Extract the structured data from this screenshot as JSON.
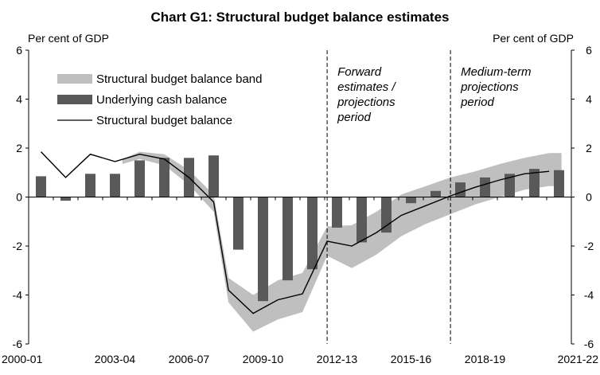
{
  "chart_data": {
    "type": "bar",
    "title": "Chart G1: Structural budget balance estimates",
    "ylabel_left": "Per cent of GDP",
    "ylabel_right": "Per cent of GDP",
    "ylim": [
      -6,
      6
    ],
    "yticks": [
      "6",
      "4",
      "2",
      "0",
      "-2",
      "-4",
      "-6"
    ],
    "categories": [
      "2000-01",
      "2001-02",
      "2002-03",
      "2003-04",
      "2004-05",
      "2005-06",
      "2006-07",
      "2007-08",
      "2008-09",
      "2009-10",
      "2010-11",
      "2011-12",
      "2012-13",
      "2013-14",
      "2014-15",
      "2015-16",
      "2016-17",
      "2017-18",
      "2018-19",
      "2019-20",
      "2020-21",
      "2021-22"
    ],
    "xtick_labels": [
      "2000-01",
      "2003-04",
      "2006-07",
      "2009-10",
      "2012-13",
      "2015-16",
      "2018-19",
      "2021-22"
    ],
    "legend": {
      "band": "Structural budget balance band",
      "bars": "Underlying cash balance",
      "line": "Structural budget balance"
    },
    "series": [
      {
        "name": "Underlying cash balance",
        "kind": "bar",
        "color": "#595959",
        "values": [
          0.85,
          -0.15,
          0.95,
          0.95,
          1.5,
          1.6,
          1.6,
          1.7,
          -2.15,
          -4.25,
          -3.4,
          -2.95,
          -1.25,
          -1.85,
          -1.45,
          -0.25,
          0.25,
          0.6,
          0.8,
          0.95,
          1.15,
          1.1
        ]
      },
      {
        "name": "Structural budget balance",
        "kind": "line",
        "color": "#000000",
        "x": [
          0,
          1,
          2,
          3,
          4,
          5,
          6,
          7,
          7.6,
          8.6,
          9.6,
          10.6,
          11.6,
          12.6,
          13.6,
          14.6,
          15.6,
          16.6,
          17.6,
          18.6,
          19.6,
          20.6
        ],
        "values": [
          1.85,
          0.8,
          1.75,
          1.45,
          1.75,
          1.55,
          0.8,
          -0.2,
          -3.8,
          -4.75,
          -4.2,
          -3.95,
          -1.8,
          -2.0,
          -1.45,
          -0.75,
          -0.35,
          0.05,
          0.4,
          0.7,
          0.95,
          1.05
        ]
      },
      {
        "name": "Structural budget balance band",
        "kind": "band",
        "color": "#bfbfbf",
        "x": [
          3.3,
          4,
          5,
          6,
          7,
          7.6,
          8.6,
          9.6,
          10.6,
          11.6,
          12.6,
          13.6,
          14.6,
          15.6,
          16.6,
          17.6,
          18.6,
          19.6,
          20.6,
          21.1
        ],
        "upper": [
          1.55,
          1.85,
          1.75,
          1.1,
          0.1,
          -3.3,
          -4.0,
          -3.4,
          -3.1,
          -1.2,
          -1.15,
          -0.6,
          0.1,
          0.45,
          0.8,
          1.05,
          1.35,
          1.6,
          1.8,
          1.8
        ],
        "lower": [
          1.35,
          1.55,
          1.3,
          0.5,
          -0.6,
          -4.3,
          -5.5,
          -5.0,
          -4.7,
          -2.4,
          -2.9,
          -2.35,
          -1.6,
          -1.1,
          -0.7,
          -0.3,
          0.0,
          0.3,
          0.45,
          0.45
        ]
      }
    ],
    "period_dividers": [
      {
        "after_index": 11.6,
        "label_lines": [
          "Forward",
          "estimates /",
          "projections",
          "period"
        ]
      },
      {
        "after_index": 16.6,
        "label_lines": [
          "Medium-term",
          "projections",
          "period"
        ]
      }
    ],
    "grid": false,
    "legend_position": "top-left"
  }
}
